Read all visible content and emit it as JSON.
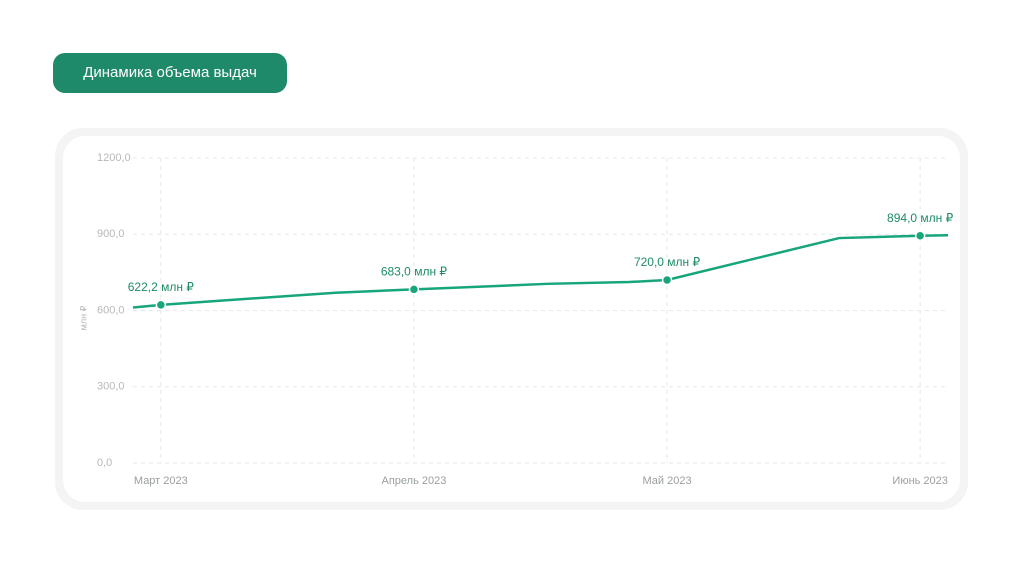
{
  "chart_data": {
    "type": "line",
    "title": "Динамика объема выдач",
    "y_label": "млн ₽",
    "xlim": [
      -0.11,
      3.11
    ],
    "xticks": [
      {
        "value": 0,
        "label": "Март 2023"
      },
      {
        "value": 1,
        "label": "Апрель 2023"
      },
      {
        "value": 2,
        "label": "Май 2023"
      },
      {
        "value": 3,
        "label": "Июнь 2023"
      }
    ],
    "ylim": [
      0,
      1200
    ],
    "yticks": [
      {
        "value": 0,
        "label": "0,0"
      },
      {
        "value": 300,
        "label": "300,0"
      },
      {
        "value": 600,
        "label": "600,0"
      },
      {
        "value": 900,
        "label": "900,0"
      },
      {
        "value": 1200,
        "label": "1200,0"
      }
    ],
    "grid": true,
    "series": [
      {
        "color": "#17a57c",
        "x": [
          -0.11,
          0,
          0.69,
          1,
          1.53,
          1.85,
          2,
          2.68,
          3,
          3.11
        ],
        "values": [
          612,
          622.2,
          670,
          683,
          705,
          712,
          720,
          885,
          894,
          896
        ],
        "value_labels": [
          null,
          "622,2 млн ₽",
          null,
          "683,0 млн ₽",
          null,
          null,
          "720,0 млн ₽",
          null,
          "894,0 млн ₽",
          null
        ]
      }
    ]
  }
}
